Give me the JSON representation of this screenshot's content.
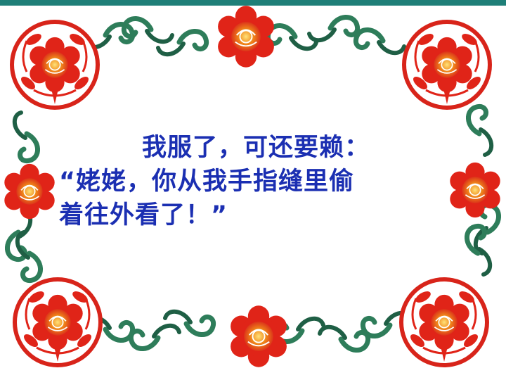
{
  "slide": {
    "lines": [
      "我服了，可还要赖：",
      "“姥姥，你从我手指缝里偷",
      "着往外看了！”"
    ]
  },
  "colors": {
    "topbar": "#1f7f78",
    "text": "#1b2fb2",
    "flower_red": "#e02418",
    "flower_orange": "#f08a1a",
    "leaf_green": "#2e7d5a"
  },
  "icons": [
    "paper-cut-flower-border"
  ]
}
